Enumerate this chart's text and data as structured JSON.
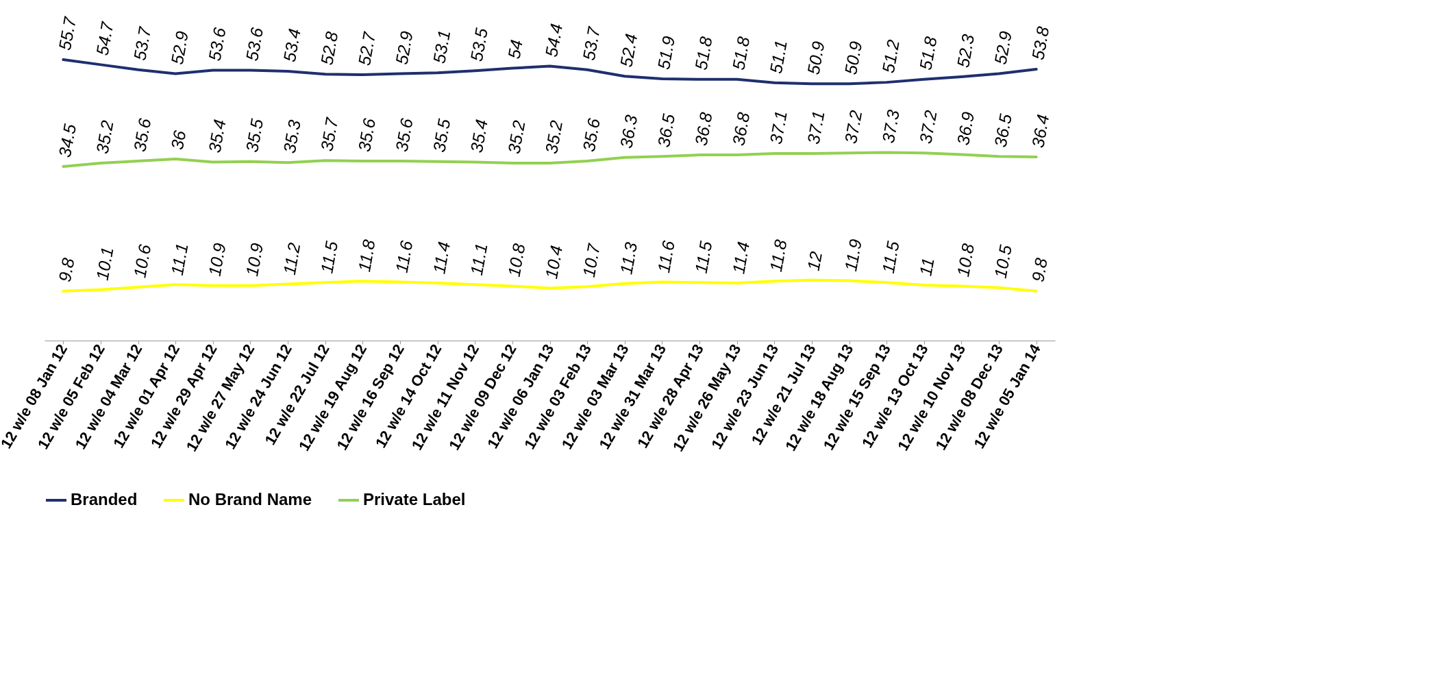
{
  "chart_data": {
    "type": "line",
    "categories": [
      "12 w/e 08 Jan 12",
      "12 w/e 05 Feb 12",
      "12 w/e 04 Mar 12",
      "12 w/e 01 Apr 12",
      "12 w/e 29 Apr 12",
      "12 w/e 27 May 12",
      "12 w/e 24 Jun 12",
      "12 w/e 22 Jul 12",
      "12 w/e 19 Aug 12",
      "12 w/e 16 Sep 12",
      "12 w/e 14 Oct 12",
      "12 w/e 11 Nov 12",
      "12 w/e 09 Dec 12",
      "12 w/e 06 Jan 13",
      "12 w/e 03 Feb 13",
      "12 w/e 03 Mar 13",
      "12 w/e 31 Mar 13",
      "12 w/e 28 Apr 13",
      "12 w/e 26 May 13",
      "12 w/e 23 Jun 13",
      "12 w/e 21 Jul 13",
      "12 w/e 18 Aug 13",
      "12 w/e 15 Sep 13",
      "12 w/e 13 Oct 13",
      "12 w/e 10 Nov 13",
      "12 w/e 08 Dec 13",
      "12 w/e 05 Jan 14"
    ],
    "series": [
      {
        "name": "Branded",
        "color": "#1f2f6e",
        "values": [
          55.7,
          54.7,
          53.7,
          52.9,
          53.6,
          53.6,
          53.4,
          52.8,
          52.7,
          52.9,
          53.1,
          53.5,
          54,
          54.4,
          53.7,
          52.4,
          51.9,
          51.8,
          51.8,
          51.1,
          50.9,
          50.9,
          51.2,
          51.8,
          52.3,
          52.9,
          53.8
        ]
      },
      {
        "name": "No Brand Name",
        "color": "#ffff00",
        "values": [
          9.8,
          10.1,
          10.6,
          11.1,
          10.9,
          10.9,
          11.2,
          11.5,
          11.8,
          11.6,
          11.4,
          11.1,
          10.8,
          10.4,
          10.7,
          11.3,
          11.6,
          11.5,
          11.4,
          11.8,
          12,
          11.9,
          11.5,
          11,
          10.8,
          10.5,
          9.8
        ]
      },
      {
        "name": "Private Label",
        "color": "#92d050",
        "values": [
          34.5,
          35.2,
          35.6,
          36,
          35.4,
          35.5,
          35.3,
          35.7,
          35.6,
          35.6,
          35.5,
          35.4,
          35.2,
          35.2,
          35.6,
          36.3,
          36.5,
          36.8,
          36.8,
          37.1,
          37.1,
          37.2,
          37.3,
          37.2,
          36.9,
          36.5,
          36.4
        ]
      }
    ],
    "tick_labels": "x",
    "data_labels": true,
    "legend": "bottom",
    "grid": false,
    "marker": "none",
    "line_style": "solid"
  }
}
